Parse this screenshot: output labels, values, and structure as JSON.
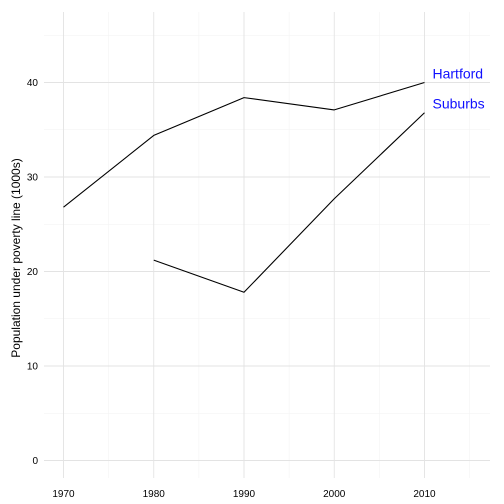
{
  "chart_data": {
    "type": "line",
    "title": "",
    "xlabel": "",
    "ylabel": "Population under poverty line (1000s)",
    "x": [
      1970,
      1980,
      1990,
      2000,
      2010
    ],
    "xlim": [
      1970,
      2010
    ],
    "ylim": [
      0,
      45
    ],
    "x_ticks": [
      1970,
      1980,
      1990,
      2000,
      2010
    ],
    "y_ticks": [
      0,
      10,
      20,
      30,
      40
    ],
    "grid": true,
    "legend": "direct labels at right end of lines",
    "series": [
      {
        "name": "Hartford",
        "x": [
          1970,
          1980,
          1990,
          2000,
          2010
        ],
        "values": [
          26.8,
          34.4,
          38.4,
          37.1,
          40.0
        ],
        "line_color": "#000000",
        "label_color": "#1010ff"
      },
      {
        "name": "Suburbs",
        "x": [
          1980,
          1990,
          2000,
          2010
        ],
        "values": [
          21.2,
          17.8,
          27.7,
          36.8
        ],
        "line_color": "#000000",
        "label_color": "#1010ff"
      }
    ],
    "colors": {
      "grid_major": "#e3e3e3",
      "grid_minor": "#f2f2f2",
      "line": "#000000",
      "label": "#1010ff"
    }
  }
}
